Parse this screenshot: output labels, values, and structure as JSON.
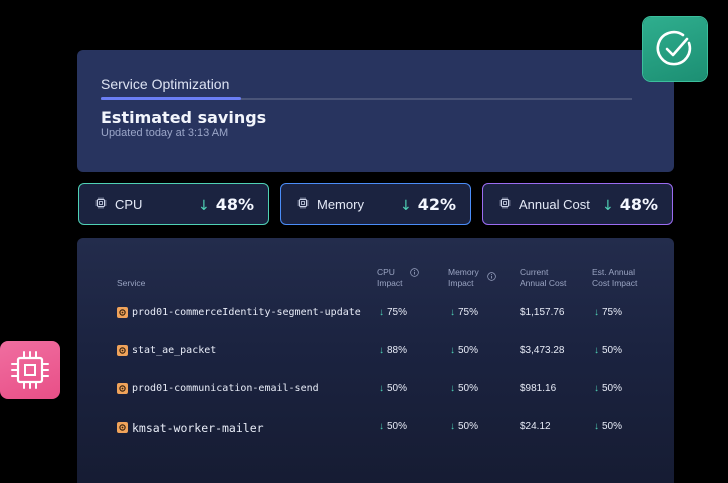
{
  "header": {
    "tab_label": "Service Optimization",
    "title": "Estimated savings",
    "updated": "Updated today at 3:13 AM"
  },
  "metrics": [
    {
      "label": "CPU",
      "value": "48%",
      "icon": "chip-icon",
      "accent": "#4fd1b5"
    },
    {
      "label": "Memory",
      "value": "42%",
      "icon": "chip-icon",
      "accent": "#4b8df8"
    },
    {
      "label": "Annual Cost",
      "value": "48%",
      "icon": "chip-icon",
      "accent": "#9b6cf2"
    }
  ],
  "table": {
    "headers": {
      "service": "Service",
      "cpu_line1": "CPU",
      "cpu_line2": "Impact",
      "mem_line1": "Memory",
      "mem_line2": "Impact",
      "cost_line1": "Current",
      "cost_line2": "Annual Cost",
      "est_line1": "Est. Annual",
      "est_line2": "Cost Impact"
    },
    "rows": [
      {
        "service": "prod01-commerceIdentity-segment-update",
        "cpu": "75%",
        "memory": "75%",
        "cost": "$1,157.76",
        "est": "75%"
      },
      {
        "service": "stat_ae_packet",
        "cpu": "88%",
        "memory": "50%",
        "cost": "$3,473.28",
        "est": "50%"
      },
      {
        "service": "prod01-communication-email-send",
        "cpu": "50%",
        "memory": "50%",
        "cost": "$981.16",
        "est": "50%"
      },
      {
        "service": "kmsat-worker-mailer",
        "cpu": "50%",
        "memory": "50%",
        "cost": "$24.12",
        "est": "50%"
      }
    ]
  },
  "colors": {
    "accent_green": "#4fd1b5",
    "accent_blue": "#4b8df8",
    "accent_purple": "#9b6cf2",
    "check_badge": "#2fae8e",
    "chip_badge": "#f06ea0",
    "row_icon": "#f0a35a"
  },
  "icons": {
    "check_badge": "check-circle-icon",
    "chip_badge": "chip-icon",
    "row_service": "service-gear-icon",
    "info": "info-icon",
    "arrow": "arrow-down-icon"
  }
}
